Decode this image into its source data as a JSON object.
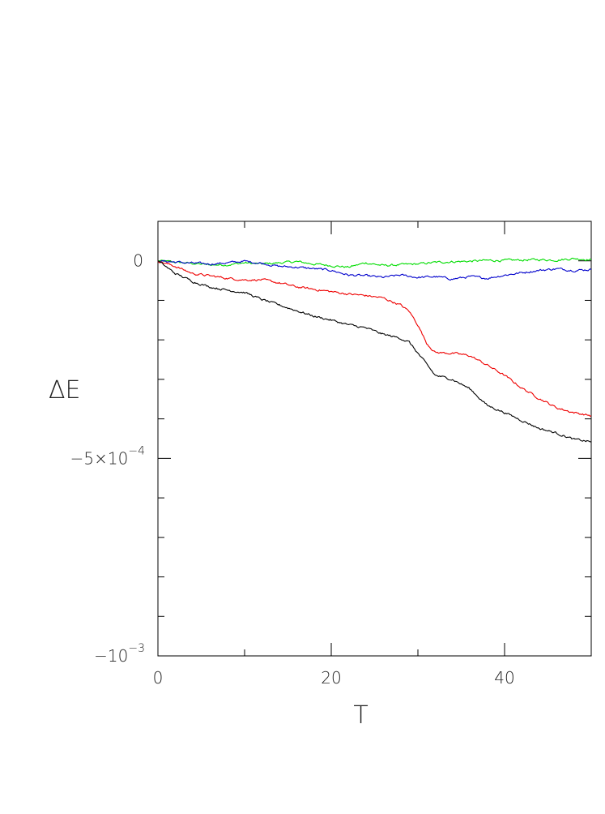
{
  "chart_data": {
    "type": "line",
    "xlabel": "T",
    "ylabel": "ΔE",
    "xlim": [
      0,
      50
    ],
    "ylim": [
      -0.001,
      0.0001
    ],
    "x_ticks": [
      {
        "value": 0,
        "label": "0"
      },
      {
        "value": 20,
        "label": "20"
      },
      {
        "value": 40,
        "label": "40"
      }
    ],
    "x_minor_ticks": [
      10,
      30
    ],
    "y_ticks": [
      {
        "value": 0,
        "label": "0",
        "exp": ""
      },
      {
        "value": -0.0005,
        "label": "−5×10",
        "exp": "−4"
      },
      {
        "value": -0.001,
        "label": "−10",
        "exp": "−3"
      }
    ],
    "y_minor_ticks": [
      -0.0001,
      -0.0002,
      -0.0003,
      -0.0004,
      -0.0006,
      -0.0007,
      -0.0008,
      -0.0009
    ],
    "series": [
      {
        "color": "#00dd00",
        "points": [
          [
            0,
            0
          ],
          [
            3,
            -5e-06
          ],
          [
            6,
            -1e-05
          ],
          [
            8,
            -1e-05
          ],
          [
            10,
            -5e-06
          ],
          [
            12,
            -8e-06
          ],
          [
            14,
            -5e-06
          ],
          [
            16,
            -2e-06
          ],
          [
            18,
            -8e-06
          ],
          [
            20,
            -1.2e-05
          ],
          [
            22,
            -1.6e-05
          ],
          [
            24,
            -5e-06
          ],
          [
            26,
            -1.2e-05
          ],
          [
            28,
            -1e-05
          ],
          [
            30,
            -8e-06
          ],
          [
            32,
            -4e-06
          ],
          [
            34,
            -2e-06
          ],
          [
            36,
            -1e-06
          ],
          [
            38,
            1e-06
          ],
          [
            40,
            1e-06
          ],
          [
            42,
            2e-06
          ],
          [
            44,
            3e-06
          ],
          [
            46,
            2e-06
          ],
          [
            48,
            6e-06
          ],
          [
            50,
            3e-06
          ]
        ]
      },
      {
        "color": "#0000cc",
        "points": [
          [
            0,
            0
          ],
          [
            2,
            -3e-06
          ],
          [
            4,
            -6e-06
          ],
          [
            6,
            -8e-06
          ],
          [
            8,
            -5e-06
          ],
          [
            10,
            -1e-06
          ],
          [
            12,
            -6e-06
          ],
          [
            14,
            -1.4e-05
          ],
          [
            16,
            -1.6e-05
          ],
          [
            18,
            -2e-05
          ],
          [
            20,
            -2.4e-05
          ],
          [
            22,
            -3.6e-05
          ],
          [
            24,
            -3.8e-05
          ],
          [
            26,
            -4.2e-05
          ],
          [
            28,
            -3.6e-05
          ],
          [
            30,
            -4.2e-05
          ],
          [
            32,
            -4e-05
          ],
          [
            34,
            -4.6e-05
          ],
          [
            36,
            -4e-05
          ],
          [
            38,
            -4.4e-05
          ],
          [
            40,
            -3.6e-05
          ],
          [
            42,
            -3e-05
          ],
          [
            44,
            -2.4e-05
          ],
          [
            46,
            -2e-05
          ],
          [
            48,
            -2.4e-05
          ],
          [
            50,
            -2.2e-05
          ]
        ]
      },
      {
        "color": "#ee0000",
        "points": [
          [
            0,
            0
          ],
          [
            2,
            -1.4e-05
          ],
          [
            4,
            -3.2e-05
          ],
          [
            6,
            -3.8e-05
          ],
          [
            8,
            -4.4e-05
          ],
          [
            10,
            -4.8e-05
          ],
          [
            12,
            -4.8e-05
          ],
          [
            14,
            -5.6e-05
          ],
          [
            16,
            -6.6e-05
          ],
          [
            18,
            -7.2e-05
          ],
          [
            20,
            -7.8e-05
          ],
          [
            22,
            -8.4e-05
          ],
          [
            24,
            -8.8e-05
          ],
          [
            26,
            -9.4e-05
          ],
          [
            28,
            -0.000112
          ],
          [
            29,
            -0.000128
          ],
          [
            30,
            -0.000162
          ],
          [
            31,
            -0.000208
          ],
          [
            32,
            -0.000232
          ],
          [
            34,
            -0.000234
          ],
          [
            36,
            -0.00024
          ],
          [
            38,
            -0.000264
          ],
          [
            40,
            -0.00029
          ],
          [
            42,
            -0.000322
          ],
          [
            44,
            -0.000348
          ],
          [
            46,
            -0.000372
          ],
          [
            48,
            -0.000384
          ],
          [
            50,
            -0.000392
          ]
        ]
      },
      {
        "color": "#000000",
        "points": [
          [
            0,
            0
          ],
          [
            2,
            -3.2e-05
          ],
          [
            4,
            -5.2e-05
          ],
          [
            6,
            -6.6e-05
          ],
          [
            8,
            -7.4e-05
          ],
          [
            10,
            -8e-05
          ],
          [
            12,
            -9.8e-05
          ],
          [
            14,
            -0.000112
          ],
          [
            16,
            -0.000126
          ],
          [
            18,
            -0.00014
          ],
          [
            20,
            -0.00015
          ],
          [
            22,
            -0.000162
          ],
          [
            24,
            -0.00017
          ],
          [
            26,
            -0.000186
          ],
          [
            28,
            -0.000196
          ],
          [
            29,
            -0.000206
          ],
          [
            30,
            -0.000234
          ],
          [
            31,
            -0.000262
          ],
          [
            32,
            -0.00029
          ],
          [
            34,
            -0.0003
          ],
          [
            36,
            -0.000324
          ],
          [
            38,
            -0.000366
          ],
          [
            40,
            -0.000384
          ],
          [
            42,
            -0.000404
          ],
          [
            44,
            -0.000424
          ],
          [
            46,
            -0.000436
          ],
          [
            48,
            -0.000452
          ],
          [
            50,
            -0.000458
          ]
        ]
      }
    ]
  }
}
